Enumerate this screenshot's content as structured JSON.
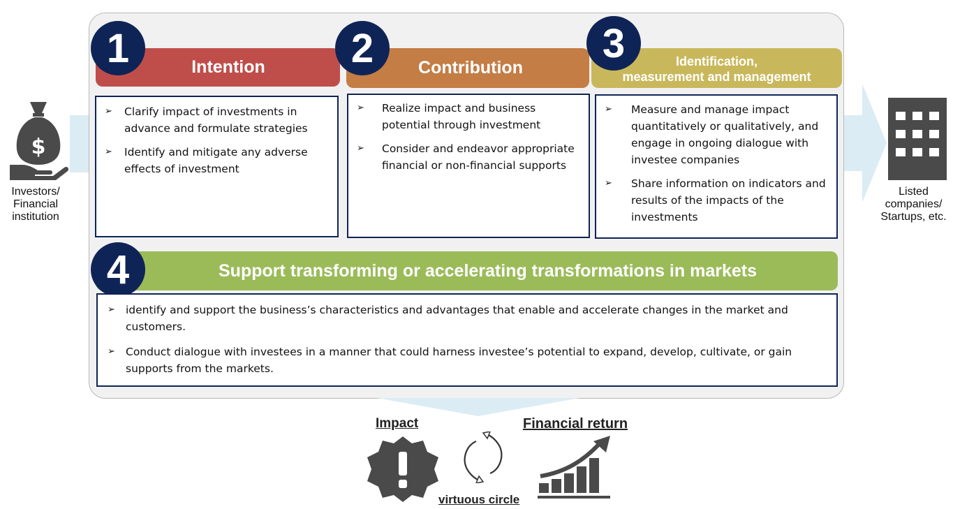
{
  "left_actor": {
    "label": "Investors/ Financial institution",
    "icon": "money-bag-hand-icon"
  },
  "right_actor": {
    "label": "Listed companies/ Startups, etc.",
    "icon": "office-building-icon"
  },
  "steps": [
    {
      "number": "1",
      "title": "Intention",
      "bullets": [
        "Clarify impact of investments in advance and formulate strategies",
        "Identify and mitigate any adverse effects of investment"
      ]
    },
    {
      "number": "2",
      "title": "Contribution",
      "bullets": [
        "Realize impact and business potential through investment",
        "Consider and endeavor appropriate financial or non-financial supports"
      ]
    },
    {
      "number": "3",
      "title_line1": "Identification,",
      "title_line2": "measurement and management",
      "bullets": [
        "Measure and manage impact quantitatively or qualitatively, and engage in ongoing dialogue with investee companies",
        "Share information on indicators and results of the impacts of the investments"
      ]
    },
    {
      "number": "4",
      "title": "Support transforming or accelerating transformations in markets",
      "bullets": [
        "identify and support the business’s characteristics and advantages that enable and accelerate changes in the market and customers.",
        "Conduct dialogue with investees in a manner that could harness investee’s potential to expand, develop, cultivate, or gain supports from the markets."
      ]
    }
  ],
  "bottom": {
    "impact_label": "Impact",
    "financial_label": "Financial return",
    "cycle_label": "virtuous circle"
  },
  "colors": {
    "step1": "#bf4e4a",
    "step2": "#c37d45",
    "step3": "#c9b85b",
    "step4": "#9bbb59",
    "navy": "#0f2456",
    "icon_gray": "#4a4a4a",
    "arrow_blue": "#dcecf4"
  }
}
